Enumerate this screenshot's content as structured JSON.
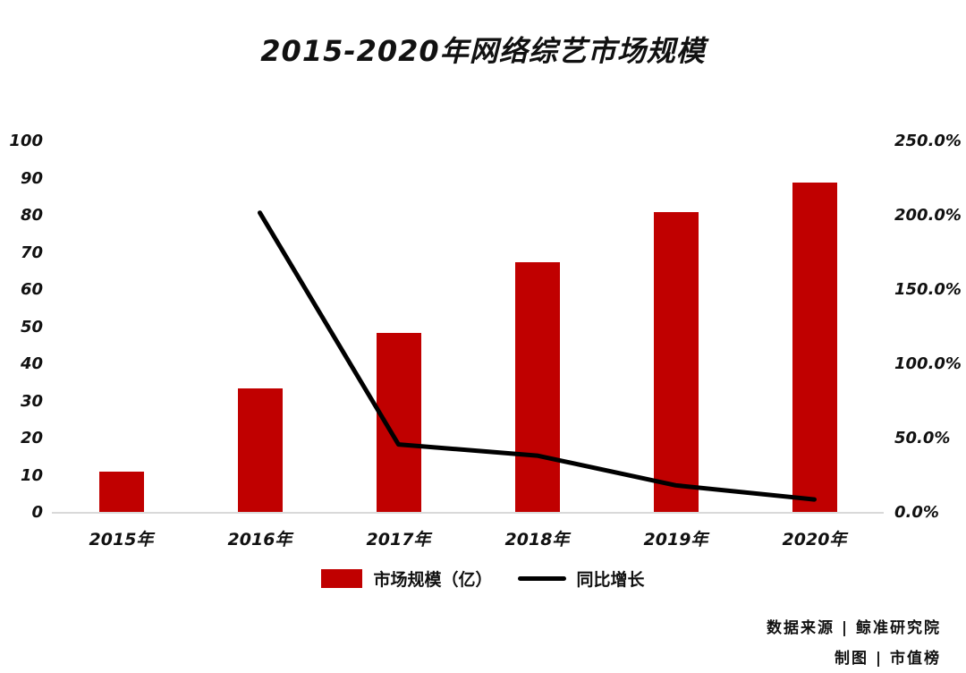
{
  "title": "2015-2020年网络综艺市场规模",
  "colors": {
    "bar": "#c00000",
    "line": "#000000",
    "axis_line": "#d9d9d9",
    "text": "#111111",
    "background": "#ffffff"
  },
  "footer": {
    "source": "数据来源 | 鲸准研究院",
    "credit": "制图 | 市值榜"
  },
  "chart_data": {
    "type": "bar",
    "subtype": "combo-bar-line",
    "title": "2015-2020年网络综艺市场规模",
    "categories": [
      "2015年",
      "2016年",
      "2017年",
      "2018年",
      "2019年",
      "2020年"
    ],
    "series": [
      {
        "name": "市场规模（亿）",
        "type": "bar",
        "axis": "left",
        "values": [
          11,
          33.5,
          48.5,
          67.5,
          81,
          89
        ]
      },
      {
        "name": "同比增长",
        "type": "line",
        "axis": "right",
        "unit": "%",
        "values": [
          null,
          202,
          46,
          38.5,
          18.5,
          9
        ]
      }
    ],
    "left_axis": {
      "min": 0,
      "max": 100,
      "step": 10,
      "ticks": [
        "0",
        "10",
        "20",
        "30",
        "40",
        "50",
        "60",
        "70",
        "80",
        "90",
        "100"
      ]
    },
    "right_axis": {
      "min": 0,
      "max": 250,
      "step": 50,
      "ticks": [
        "0.0%",
        "50.0%",
        "100.0%",
        "150.0%",
        "200.0%",
        "250.0%"
      ]
    },
    "grid": false,
    "legend_position": "bottom"
  }
}
